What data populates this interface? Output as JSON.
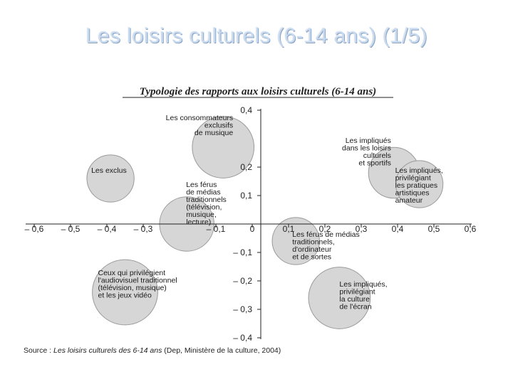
{
  "slide": {
    "title": "Les loisirs culturels (6-14 ans) (1/5)"
  },
  "source": {
    "prefix": "Source : ",
    "work": "Les loisirs culturels des 6-14 ans",
    "suffix": " (Dep, Ministère de la culture, 2004)"
  },
  "chart_data": {
    "type": "scatter",
    "title": "Typologie des rapports aux loisirs culturels (6-14 ans)",
    "xlabel": "",
    "ylabel": "",
    "xlim": [
      -0.6,
      0.6
    ],
    "ylim": [
      -0.4,
      0.4
    ],
    "grid": false,
    "x_ticks": [
      {
        "value": -0.6,
        "label": "– 0,6"
      },
      {
        "value": -0.5,
        "label": "– 0,5"
      },
      {
        "value": -0.4,
        "label": "– 0,4"
      },
      {
        "value": -0.3,
        "label": "– 0,3"
      },
      {
        "value": -0.1,
        "label": "– 0,1"
      },
      {
        "value": 0,
        "label": "0"
      },
      {
        "value": 0.1,
        "label": "0,1"
      },
      {
        "value": 0.2,
        "label": "0,2"
      },
      {
        "value": 0.3,
        "label": "0,3"
      },
      {
        "value": 0.4,
        "label": "0,4"
      },
      {
        "value": 0.5,
        "label": "0,5"
      },
      {
        "value": 0.6,
        "label": "0,6"
      }
    ],
    "y_ticks": [
      {
        "value": 0.4,
        "label": "0,4"
      },
      {
        "value": 0.2,
        "label": "0,2"
      },
      {
        "value": 0.1,
        "label": "0,1"
      },
      {
        "value": -0.1,
        "label": "– 0,1"
      },
      {
        "value": -0.2,
        "label": "– 0,2"
      },
      {
        "value": -0.3,
        "label": "– 0,3"
      },
      {
        "value": -0.4,
        "label": "– 0,4"
      }
    ],
    "points": [
      {
        "x": -0.08,
        "y": 0.27,
        "r": 0.085,
        "label": [
          "Les consommateurs",
          "exclusifs",
          "de musique"
        ]
      },
      {
        "x": -0.39,
        "y": 0.16,
        "r": 0.065,
        "label": [
          "Les exclus"
        ]
      },
      {
        "x": -0.18,
        "y": 0.0,
        "r": 0.075,
        "label": [
          "Les férus",
          "de médias",
          "traditionnels",
          "(télévision,",
          "musique,",
          "lecture)"
        ]
      },
      {
        "x": 0.39,
        "y": 0.18,
        "r": 0.07,
        "label": [
          "Les impliqués",
          "dans les loisirs",
          "culturels",
          "et sportifs"
        ]
      },
      {
        "x": 0.46,
        "y": 0.14,
        "r": 0.065,
        "label": [
          "Les impliqués,",
          "privilégiant",
          "les pratiques",
          "artistiques",
          "amateur"
        ]
      },
      {
        "x": 0.12,
        "y": -0.06,
        "r": 0.065,
        "label": [
          "Les férus de médias",
          "traditionnels,",
          "d'ordinateur",
          "et de sortes"
        ]
      },
      {
        "x": -0.35,
        "y": -0.24,
        "r": 0.09,
        "label": [
          "Ceux qui privilégient",
          "l'audiovisuel traditionnel",
          "(télévision, musique)",
          "et les jeux vidéo"
        ]
      },
      {
        "x": 0.24,
        "y": -0.26,
        "r": 0.085,
        "label": [
          "Les impliqués,",
          "privilégiant",
          "la culture",
          "de l'écran"
        ]
      }
    ]
  }
}
